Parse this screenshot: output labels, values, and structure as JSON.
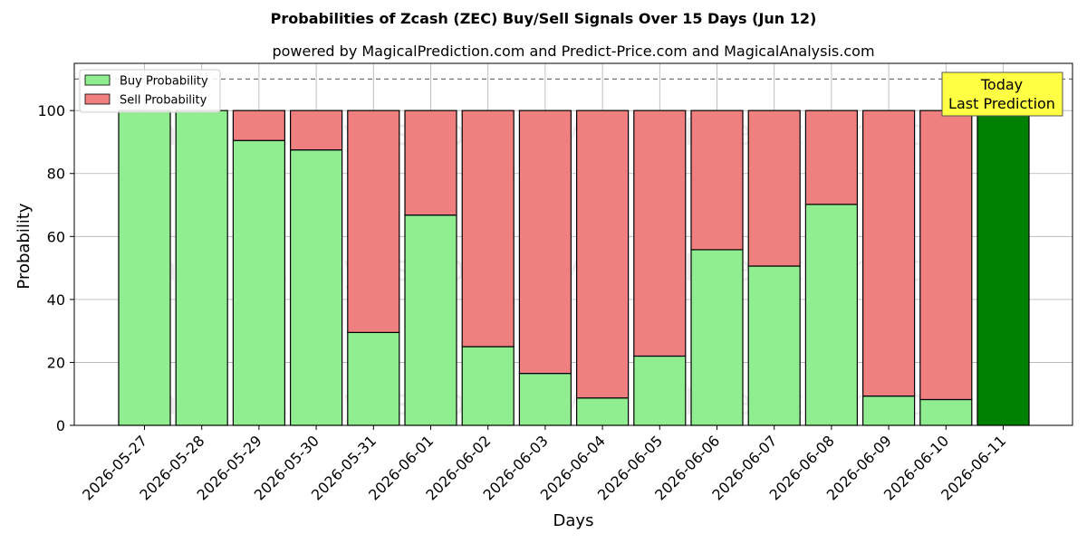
{
  "title": "Probabilities of Zcash (ZEC) Buy/Sell Signals Over 15 Days (Jun 12)",
  "subtitle": "powered by MagicalPrediction.com and Predict-Price.com and MagicalAnalysis.com",
  "watermarks": [
    "MagicalAnalysis.com",
    "MagicalPrediction.com"
  ],
  "today_annotation": [
    "Today",
    "Last Prediction"
  ],
  "colors": {
    "buy": "#90ee90",
    "sell": "#f08080",
    "today": "#008000",
    "annotation_bg": "#ffff44",
    "reference_line": "#777777"
  },
  "chart_data": {
    "type": "bar",
    "stacked": true,
    "xlabel": "Days",
    "ylabel": "Probability",
    "ylim": [
      0,
      115
    ],
    "yticks": [
      0,
      20,
      40,
      60,
      80,
      100
    ],
    "reference_line": 110,
    "grid": true,
    "legend_position": "top-left",
    "categories": [
      "2026-05-27",
      "2026-05-28",
      "2026-05-29",
      "2026-05-30",
      "2026-05-31",
      "2026-06-01",
      "2026-06-02",
      "2026-06-03",
      "2026-06-04",
      "2026-06-05",
      "2026-06-06",
      "2026-06-07",
      "2026-06-08",
      "2026-06-09",
      "2026-06-10",
      "2026-06-11"
    ],
    "series": [
      {
        "name": "Buy Probability",
        "values": [
          100,
          100,
          90.5,
          87.5,
          29.5,
          66.8,
          25,
          16.5,
          8.7,
          22,
          55.8,
          50.6,
          70.2,
          9.3,
          8.2,
          100
        ]
      },
      {
        "name": "Sell Probability",
        "values": [
          0,
          0,
          9.5,
          12.5,
          70.5,
          33.2,
          75,
          83.5,
          91.3,
          78,
          44.2,
          49.4,
          29.8,
          90.7,
          91.8,
          0
        ]
      }
    ],
    "highlight_category": "2026-06-11"
  }
}
